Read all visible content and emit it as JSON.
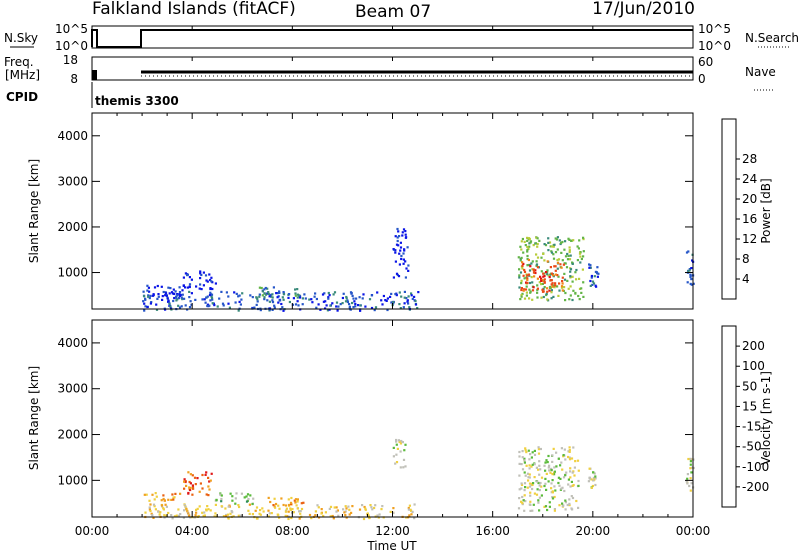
{
  "header": {
    "station": "Falkland Islands (fitACF)",
    "beam": "Beam 07",
    "date": "17/Jun/2010"
  },
  "strip_labels": {
    "nsky": "N.Sky",
    "freq_top": "Freq.",
    "freq_unit": "[MHz]",
    "cpid": "CPID",
    "nsearch": "N.Search",
    "nave": "Nave",
    "nsky_ticks": [
      "10^5",
      "10^0"
    ],
    "nsearch_ticks": [
      "10^5",
      "10^0"
    ],
    "freq_ticks": [
      "18",
      "8"
    ],
    "nave_ticks": [
      "60",
      "0"
    ],
    "cpid_text": "themis 3300"
  },
  "chart_data": [
    {
      "type": "heatmap",
      "name": "power",
      "ylabel": "Slant Range [km]",
      "ylim": [
        200,
        4500
      ],
      "yticks": [
        1000,
        2000,
        3000,
        4000
      ],
      "xlim": [
        0,
        24
      ],
      "colorbar": {
        "label": "Power [dB]",
        "ticks": [
          "4",
          "8",
          "12",
          "16",
          "20",
          "24",
          "28"
        ],
        "colors": [
          "#0a14e6",
          "#2656c8",
          "#3a8a7a",
          "#62b446",
          "#b8cc3a",
          "#f0c020",
          "#f08818",
          "#ea4a18",
          "#e01010"
        ]
      },
      "regions": [
        {
          "t0": 2.0,
          "t1": 13.0,
          "r0": 180,
          "r1": 600,
          "level": 1
        },
        {
          "t0": 2.0,
          "t1": 3.6,
          "r0": 500,
          "r1": 750,
          "level": 0
        },
        {
          "t0": 3.6,
          "t1": 5.0,
          "r0": 650,
          "r1": 1050,
          "level": 0
        },
        {
          "t0": 6.6,
          "t1": 8.2,
          "r0": 450,
          "r1": 700,
          "level": 2
        },
        {
          "t0": 12.0,
          "t1": 12.6,
          "r0": 900,
          "r1": 2000,
          "level": 0
        },
        {
          "t0": 17.0,
          "t1": 19.6,
          "r0": 400,
          "r1": 1800,
          "level": 3
        },
        {
          "t0": 17.1,
          "t1": 18.8,
          "r0": 600,
          "r1": 1300,
          "level": 7
        },
        {
          "t0": 19.8,
          "t1": 20.2,
          "r0": 700,
          "r1": 1300,
          "level": 1
        },
        {
          "t0": 23.7,
          "t1": 24.0,
          "r0": 700,
          "r1": 1500,
          "level": 1
        }
      ]
    },
    {
      "type": "heatmap",
      "name": "velocity",
      "xlabel": "Time UT",
      "ylabel": "Slant Range [km]",
      "ylim": [
        200,
        4500
      ],
      "yticks": [
        1000,
        2000,
        3000,
        4000
      ],
      "xlim": [
        0,
        24
      ],
      "xticks": [
        "00:00",
        "04:00",
        "08:00",
        "12:00",
        "16:00",
        "20:00",
        "00:00"
      ],
      "colorbar": {
        "label": "Velocity [m s-1]",
        "ticks": [
          "200",
          "100",
          "50",
          "15",
          "-15",
          "-50",
          "-100",
          "-200"
        ],
        "colors": [
          "#1428c8",
          "#2a60b4",
          "#2e8a5a",
          "#5aba3a",
          "#c0c0b8",
          "#f0d040",
          "#f0a020",
          "#ea6010",
          "#e01818"
        ]
      },
      "regions": [
        {
          "t0": 2.0,
          "t1": 13.0,
          "r0": 180,
          "r1": 500,
          "level": 5
        },
        {
          "t0": 2.0,
          "t1": 3.5,
          "r0": 550,
          "r1": 750,
          "level": 6
        },
        {
          "t0": 3.6,
          "t1": 4.8,
          "r0": 700,
          "r1": 1200,
          "level": 7
        },
        {
          "t0": 4.8,
          "t1": 6.4,
          "r0": 500,
          "r1": 750,
          "level": 3
        },
        {
          "t0": 7.0,
          "t1": 8.4,
          "r0": 450,
          "r1": 650,
          "level": 6
        },
        {
          "t0": 17.0,
          "t1": 19.4,
          "r0": 350,
          "r1": 1750,
          "level": 4
        },
        {
          "t0": 19.8,
          "t1": 20.1,
          "r0": 800,
          "r1": 1300,
          "level": 4
        },
        {
          "t0": 12.0,
          "t1": 12.5,
          "r0": 1300,
          "r1": 2000,
          "level": 4
        },
        {
          "t0": 23.7,
          "t1": 24.0,
          "r0": 800,
          "r1": 1500,
          "level": 4
        }
      ]
    }
  ]
}
